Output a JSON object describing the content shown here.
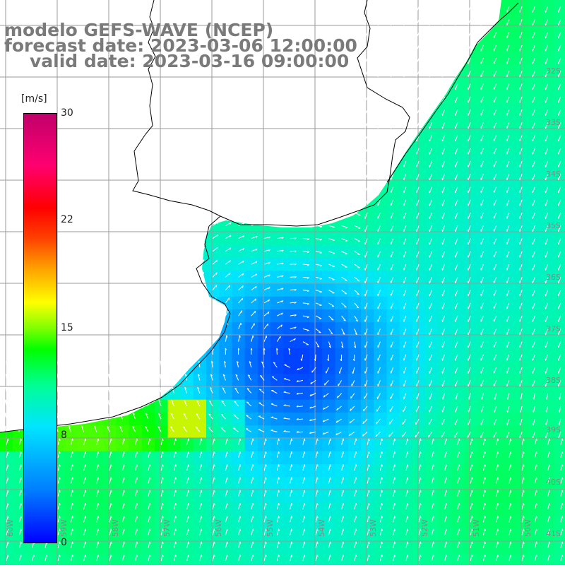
{
  "title": {
    "line1": "modelo GEFS-WAVE (NCEP)",
    "line2": "forecast date: 2023-03-06 12:00:00",
    "line3": "valid date: 2023-03-16 09:00:00"
  },
  "colorbar": {
    "unit": "[m/s]",
    "ticks": [
      "30",
      "22",
      "15",
      "8",
      "0"
    ],
    "min": 0,
    "max": 30
  },
  "map": {
    "field": "wind speed",
    "land_color": "#ffffff",
    "grid_color": "#9a9a9a",
    "coast_color": "#000000",
    "arrow_color": "#ffffff",
    "lat_labels": [
      "32S",
      "33S",
      "34S",
      "35S",
      "36S",
      "37S",
      "38S",
      "39S",
      "40S",
      "41S"
    ],
    "lon_labels": [
      "60W",
      "59W",
      "58W",
      "57W",
      "56W",
      "55W",
      "54W",
      "53W",
      "52W",
      "51W",
      "50W"
    ]
  }
}
